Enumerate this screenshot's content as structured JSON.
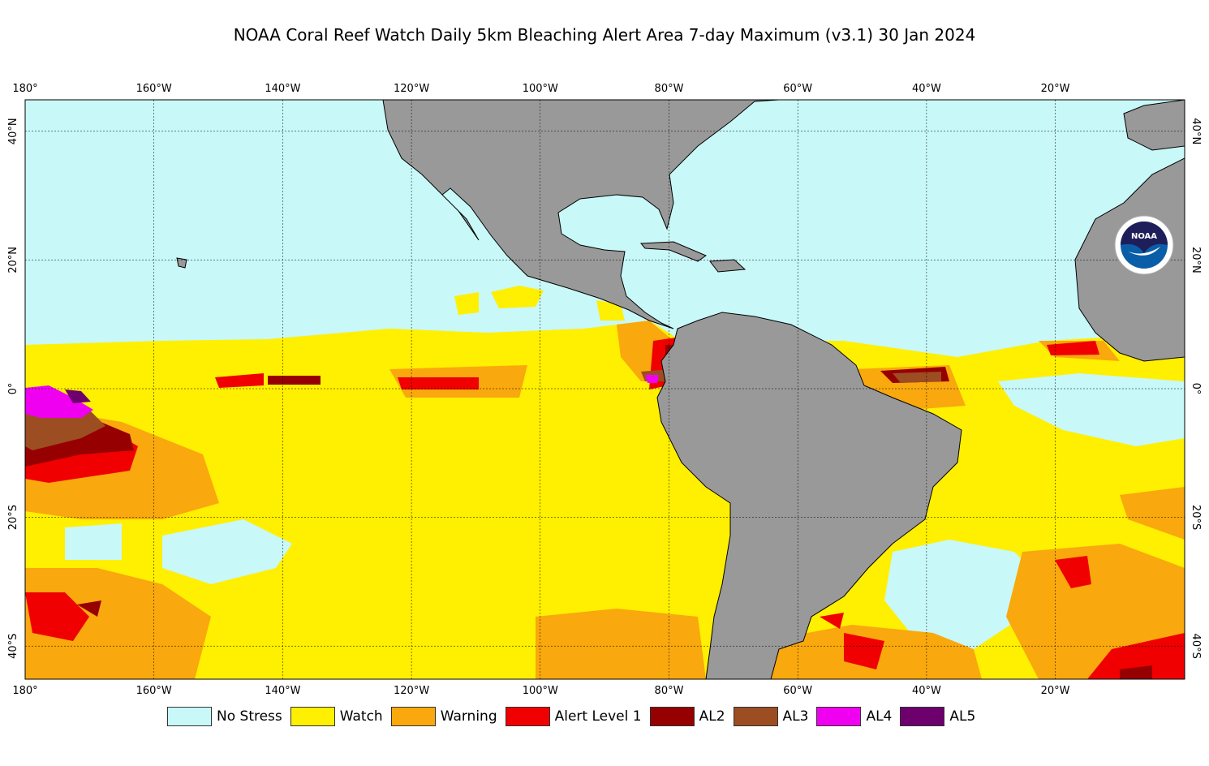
{
  "title": "NOAA Coral Reef Watch Daily 5km Bleaching Alert Area 7-day Maximum  (v3.1)   30 Jan 2024",
  "lon_ticks": [
    {
      "lon": -180,
      "label": "180°"
    },
    {
      "lon": -160,
      "label": "160°W"
    },
    {
      "lon": -140,
      "label": "140°W"
    },
    {
      "lon": -120,
      "label": "120°W"
    },
    {
      "lon": -100,
      "label": "100°W"
    },
    {
      "lon": -80,
      "label": "80°W"
    },
    {
      "lon": -60,
      "label": "60°W"
    },
    {
      "lon": -40,
      "label": "40°W"
    },
    {
      "lon": -20,
      "label": "20°W"
    }
  ],
  "lat_ticks": [
    {
      "lat": 40,
      "label": "40°N"
    },
    {
      "lat": 20,
      "label": "20°N"
    },
    {
      "lat": 0,
      "label": "0°"
    },
    {
      "lat": -20,
      "label": "20°S"
    },
    {
      "lat": -40,
      "label": "40°S"
    }
  ],
  "logo_text": "NOAA",
  "legend": [
    {
      "label": "No Stress",
      "color": "#c8f8f8"
    },
    {
      "label": "Watch",
      "color": "#ffef00"
    },
    {
      "label": "Warning",
      "color": "#f9a80d"
    },
    {
      "label": "Alert Level 1",
      "color": "#f00000"
    },
    {
      "label": "AL2",
      "color": "#960000"
    },
    {
      "label": "AL3",
      "color": "#9c4d22"
    },
    {
      "label": "AL4",
      "color": "#f000f0"
    },
    {
      "label": "AL5",
      "color": "#6e006e"
    }
  ]
}
